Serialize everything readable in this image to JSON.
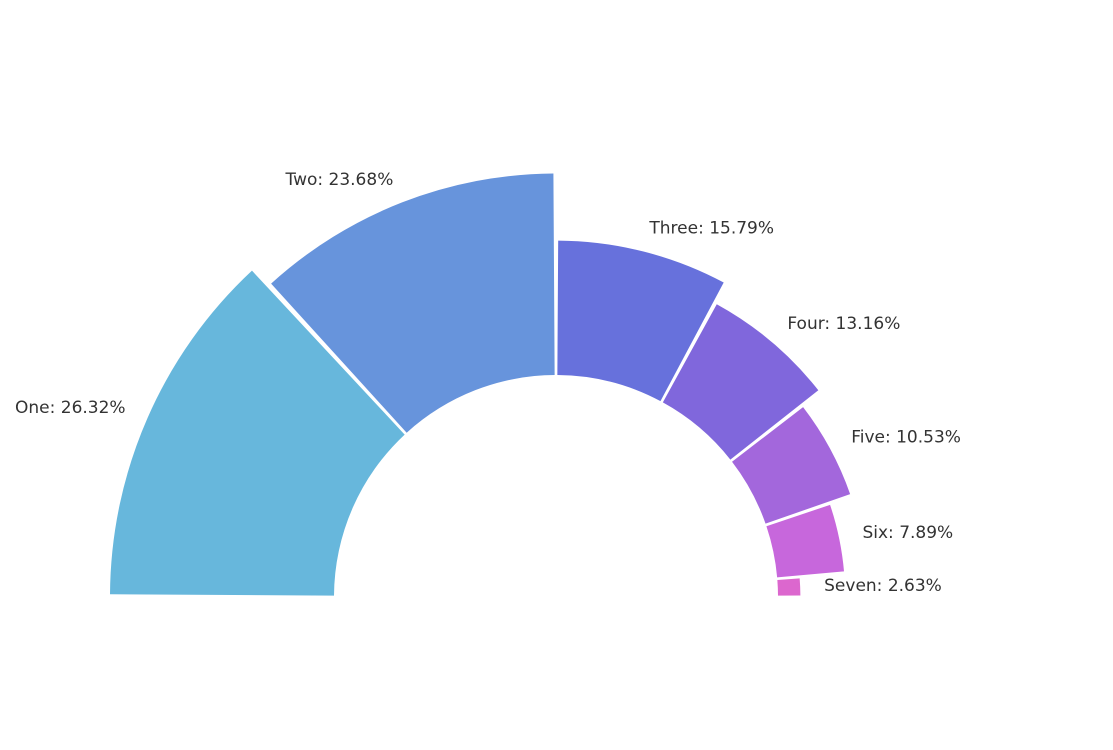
{
  "chart_data": {
    "type": "pie",
    "variant": "semicircle-donut",
    "title": "",
    "categories": [
      "One",
      "Two",
      "Three",
      "Four",
      "Five",
      "Six",
      "Seven"
    ],
    "values": [
      26.32,
      23.68,
      15.79,
      13.16,
      10.53,
      7.89,
      2.63
    ],
    "labels": [
      "One: 26.32%",
      "Two: 23.68%",
      "Three: 15.79%",
      "Four: 13.16%",
      "Five: 10.53%",
      "Six: 7.89%",
      "Seven: 2.63%"
    ],
    "colors": [
      "#67b7dc",
      "#6794dc",
      "#6771dc",
      "#8067dc",
      "#a367dc",
      "#c767dc",
      "#dc67ce"
    ],
    "start_angle_deg": 180,
    "end_angle_deg": 360,
    "legend": "none",
    "grid": false
  }
}
